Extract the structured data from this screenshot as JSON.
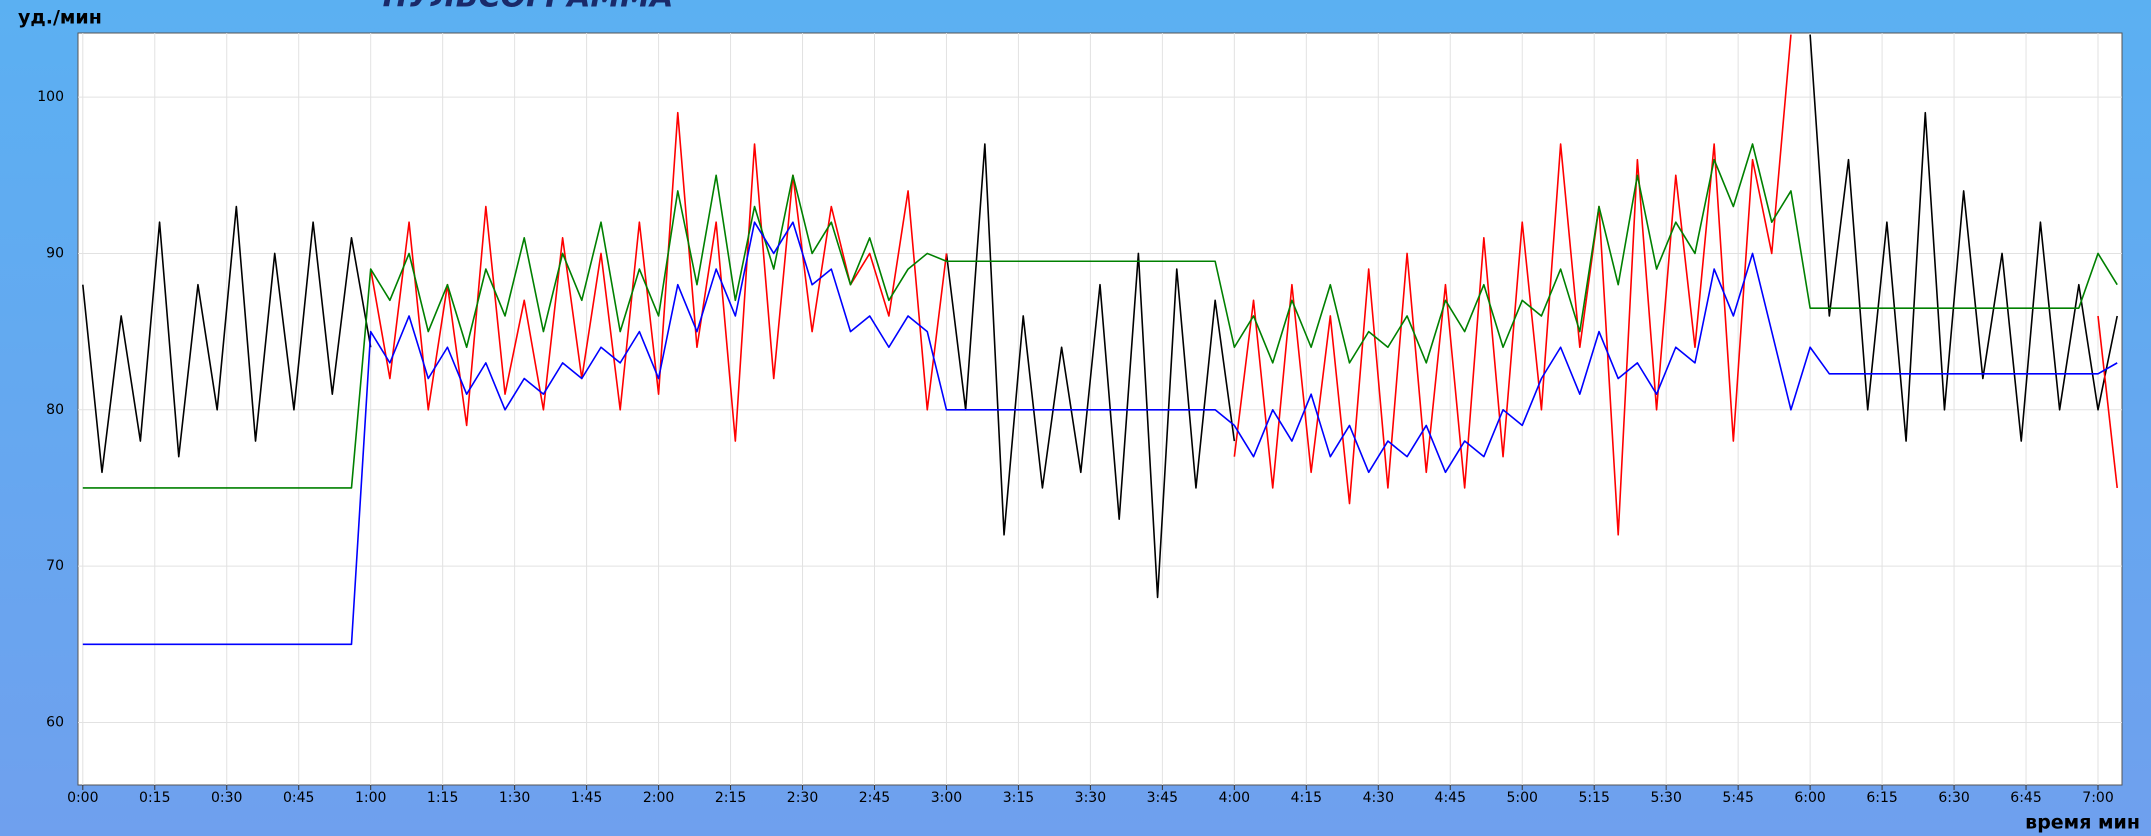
{
  "chart_data": {
    "type": "line",
    "title": "ПУЛЬСОГРАММА",
    "ylabel": "уд./мин",
    "xlabel": "время мин",
    "x": [
      0,
      4,
      8,
      12,
      16,
      20,
      24,
      28,
      32,
      36,
      40,
      44,
      48,
      52,
      56,
      60,
      64,
      68,
      72,
      76,
      80,
      84,
      88,
      92,
      96,
      100,
      104,
      108,
      112,
      116,
      120,
      124,
      128,
      132,
      136,
      140,
      144,
      148,
      152,
      156,
      160,
      164,
      168,
      172,
      176,
      180,
      184,
      188,
      192,
      196,
      200,
      204,
      208,
      212,
      216,
      220,
      224,
      228,
      232,
      236,
      240,
      244,
      248,
      252,
      256,
      260,
      264,
      268,
      272,
      276,
      280,
      284,
      288,
      292,
      296,
      300,
      304,
      308,
      312,
      316,
      320,
      324,
      328,
      332,
      336,
      340,
      344,
      348,
      352,
      356,
      360,
      364,
      368,
      372,
      376,
      380,
      384,
      388,
      392,
      396,
      400,
      404,
      408,
      412,
      416,
      420,
      424
    ],
    "series": [
      {
        "color": "#000000",
        "values": [
          88,
          76,
          86,
          78,
          92,
          77,
          88,
          80,
          93,
          78,
          90,
          80,
          92,
          81,
          91,
          84,
          null,
          null,
          null,
          null,
          null,
          null,
          null,
          null,
          null,
          null,
          null,
          null,
          null,
          null,
          null,
          null,
          null,
          null,
          null,
          null,
          null,
          null,
          null,
          null,
          null,
          null,
          null,
          null,
          null,
          90,
          80,
          97,
          72,
          86,
          75,
          84,
          76,
          88,
          73,
          90,
          68,
          89,
          75,
          87,
          78,
          null,
          null,
          null,
          null,
          null,
          null,
          null,
          null,
          null,
          null,
          null,
          null,
          null,
          null,
          null,
          null,
          null,
          null,
          null,
          null,
          null,
          null,
          null,
          null,
          null,
          null,
          null,
          null,
          null,
          104,
          86,
          96,
          80,
          92,
          78,
          99,
          80,
          94,
          82,
          90,
          78,
          92,
          80,
          88,
          80,
          86
        ]
      },
      {
        "color": "#ff0000",
        "values": [
          null,
          null,
          null,
          null,
          null,
          null,
          null,
          null,
          null,
          null,
          null,
          null,
          null,
          null,
          null,
          89,
          82,
          92,
          80,
          88,
          79,
          93,
          81,
          87,
          80,
          91,
          82,
          90,
          80,
          92,
          81,
          99,
          84,
          92,
          78,
          97,
          82,
          95,
          85,
          93,
          88,
          90,
          86,
          94,
          80,
          90,
          null,
          null,
          null,
          null,
          null,
          null,
          null,
          null,
          null,
          null,
          null,
          null,
          null,
          null,
          77,
          87,
          75,
          88,
          76,
          86,
          74,
          89,
          75,
          90,
          76,
          88,
          75,
          91,
          77,
          92,
          80,
          97,
          84,
          93,
          72,
          96,
          80,
          95,
          84,
          97,
          78,
          96,
          90,
          104,
          null,
          null,
          null,
          null,
          null,
          null,
          null,
          null,
          null,
          null,
          null,
          null,
          null,
          null,
          null,
          86,
          75
        ]
      },
      {
        "color": "#008000",
        "values": [
          75,
          75,
          75,
          75,
          75,
          75,
          75,
          75,
          75,
          75,
          75,
          75,
          75,
          75,
          75,
          89,
          87,
          90,
          85,
          88,
          84,
          89,
          86,
          91,
          85,
          90,
          87,
          92,
          85,
          89,
          86,
          94,
          88,
          95,
          87,
          93,
          89,
          95,
          90,
          92,
          88,
          91,
          87,
          89,
          90,
          89.5,
          89.5,
          89.5,
          89.5,
          89.5,
          89.5,
          89.5,
          89.5,
          89.5,
          89.5,
          89.5,
          89.5,
          89.5,
          89.5,
          89.5,
          84,
          86,
          83,
          87,
          84,
          88,
          83,
          85,
          84,
          86,
          83,
          87,
          85,
          88,
          84,
          87,
          86,
          89,
          85,
          93,
          88,
          95,
          89,
          92,
          90,
          96,
          93,
          97,
          92,
          94,
          86.5,
          86.5,
          86.5,
          86.5,
          86.5,
          86.5,
          86.5,
          86.5,
          86.5,
          86.5,
          86.5,
          86.5,
          86.5,
          86.5,
          86.5,
          90,
          88
        ]
      },
      {
        "color": "#0000ff",
        "values": [
          65,
          65,
          65,
          65,
          65,
          65,
          65,
          65,
          65,
          65,
          65,
          65,
          65,
          65,
          65,
          85,
          83,
          86,
          82,
          84,
          81,
          83,
          80,
          82,
          81,
          83,
          82,
          84,
          83,
          85,
          82,
          88,
          85,
          89,
          86,
          92,
          90,
          92,
          88,
          89,
          85,
          86,
          84,
          86,
          85,
          80,
          80,
          80,
          80,
          80,
          80,
          80,
          80,
          80,
          80,
          80,
          80,
          80,
          80,
          80,
          79,
          77,
          80,
          78,
          81,
          77,
          79,
          76,
          78,
          77,
          79,
          76,
          78,
          77,
          80,
          79,
          82,
          84,
          81,
          85,
          82,
          83,
          81,
          84,
          83,
          89,
          86,
          90,
          85,
          80,
          84,
          82.3,
          82.3,
          82.3,
          82.3,
          82.3,
          82.3,
          82.3,
          82.3,
          82.3,
          82.3,
          82.3,
          82.3,
          82.3,
          82.3,
          82.3,
          83
        ]
      }
    ],
    "xlim": [
      -1,
      425
    ],
    "xticks": [
      {
        "value": 0,
        "label": "0:00"
      },
      {
        "value": 15,
        "label": "0:15"
      },
      {
        "value": 30,
        "label": "0:30"
      },
      {
        "value": 45,
        "label": "0:45"
      },
      {
        "value": 60,
        "label": "1:00"
      },
      {
        "value": 75,
        "label": "1:15"
      },
      {
        "value": 90,
        "label": "1:30"
      },
      {
        "value": 105,
        "label": "1:45"
      },
      {
        "value": 120,
        "label": "2:00"
      },
      {
        "value": 135,
        "label": "2:15"
      },
      {
        "value": 150,
        "label": "2:30"
      },
      {
        "value": 165,
        "label": "2:45"
      },
      {
        "value": 180,
        "label": "3:00"
      },
      {
        "value": 195,
        "label": "3:15"
      },
      {
        "value": 210,
        "label": "3:30"
      },
      {
        "value": 225,
        "label": "3:45"
      },
      {
        "value": 240,
        "label": "4:00"
      },
      {
        "value": 255,
        "label": "4:15"
      },
      {
        "value": 270,
        "label": "4:30"
      },
      {
        "value": 285,
        "label": "4:45"
      },
      {
        "value": 300,
        "label": "5:00"
      },
      {
        "value": 315,
        "label": "5:15"
      },
      {
        "value": 330,
        "label": "5:30"
      },
      {
        "value": 345,
        "label": "5:45"
      },
      {
        "value": 360,
        "label": "6:00"
      },
      {
        "value": 375,
        "label": "6:15"
      },
      {
        "value": 390,
        "label": "6:30"
      },
      {
        "value": 405,
        "label": "6:45"
      },
      {
        "value": 420,
        "label": "7:00"
      }
    ],
    "ylim": [
      56,
      104.1
    ],
    "yticks": [
      60,
      70,
      80,
      90,
      100
    ],
    "grid": true
  }
}
